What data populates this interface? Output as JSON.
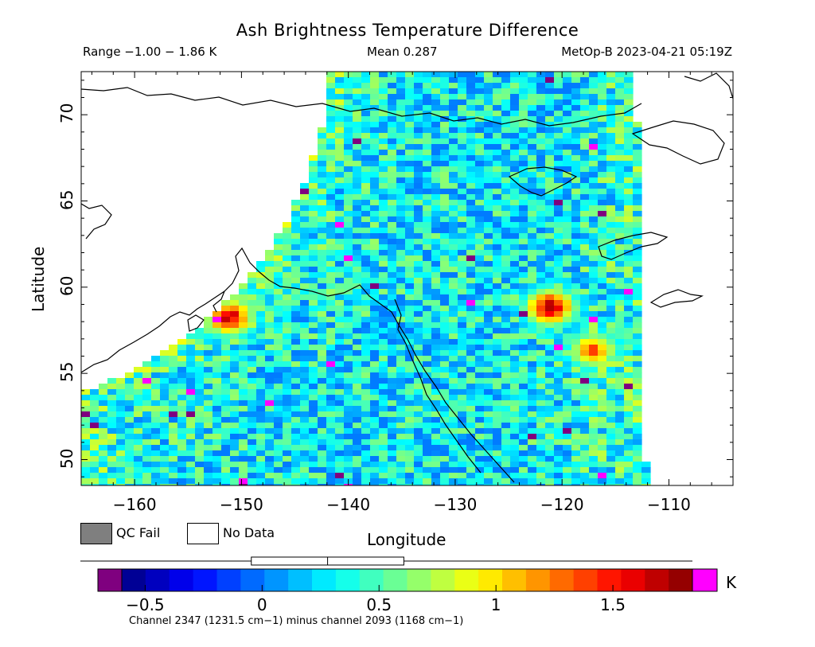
{
  "header": {
    "title": "Ash Brightness Temperature Difference",
    "range": "Range −1.00 − 1.86 K",
    "mean": "Mean 0.287",
    "satellite": "MetOp-B 2023-04-21 05:19Z"
  },
  "chart_data": {
    "type": "heatmap",
    "title": "Ash Brightness Temperature Difference",
    "xlabel": "Longitude",
    "ylabel": "Latitude",
    "xlim": [
      -165,
      -104
    ],
    "ylim": [
      48.5,
      72.5
    ],
    "x_ticks": [
      "−160",
      "−150",
      "−140",
      "−130",
      "−120",
      "−110"
    ],
    "y_ticks": [
      "50",
      "55",
      "60",
      "65",
      "70"
    ],
    "value_range": [
      -1.0,
      1.86
    ],
    "mean": 0.287,
    "unit": "K",
    "hotspots": [
      {
        "lon": -151.5,
        "lat": 58.4,
        "value": 1.6
      },
      {
        "lon": -121.5,
        "lat": 59.0,
        "value": 1.7
      },
      {
        "lon": -117.5,
        "lat": 56.5,
        "value": 1.3
      }
    ],
    "swath_edges": {
      "west_lon_at_top": -165,
      "east_lon_at_top": -113.5,
      "east_lon_at_bottom": -112.5
    }
  },
  "legend": {
    "qc_fail": "QC Fail",
    "qc_fail_color": "#7f7f7f",
    "no_data": "No Data",
    "no_data_color": "#ffffff"
  },
  "colorbar": {
    "ticks": [
      "−0.5",
      "0",
      "0.5",
      "1",
      "1.5"
    ],
    "tick_values": [
      -0.5,
      0,
      0.5,
      1,
      1.5
    ],
    "range": [
      -0.6,
      1.84
    ],
    "boxplot": {
      "whisker_low": -0.75,
      "q1": 0.09,
      "median": 0.28,
      "q3": 0.47,
      "whisker_high": 1.86
    },
    "under_color": "#7f007f",
    "over_color": "#ff00ff",
    "unit": "K",
    "caption": "Channel 2347 (1231.5 cm−1) minus channel 2093 (1168 cm−1)"
  }
}
